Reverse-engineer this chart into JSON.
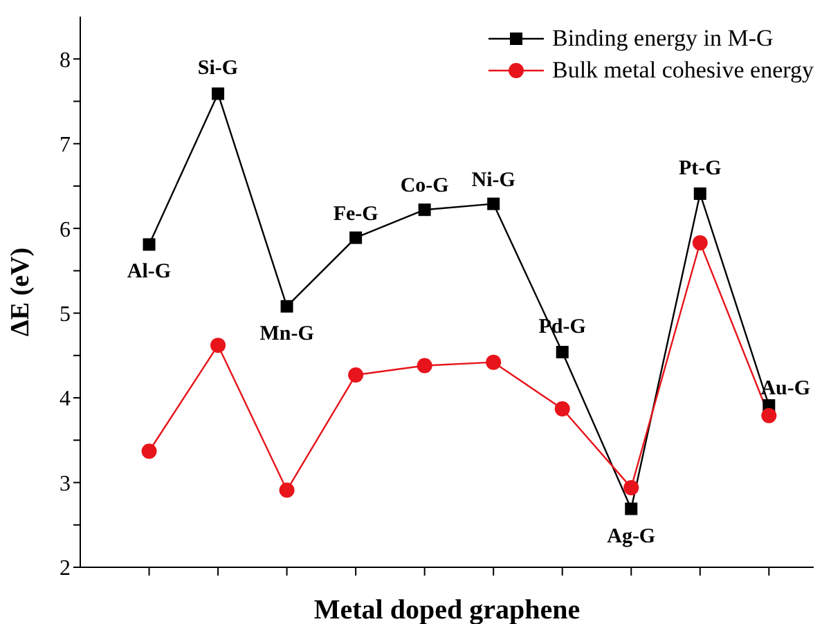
{
  "chart_data": {
    "type": "line",
    "xlabel": "Metal doped graphene",
    "ylabel": "ΔE (eV)",
    "categories": [
      null,
      null,
      null,
      null,
      null,
      null,
      null,
      null,
      null,
      null
    ],
    "series": [
      {
        "name": "Binding energy in M-G",
        "color": "#000000",
        "marker": "square",
        "values": [
          5.81,
          7.59,
          5.08,
          5.89,
          6.22,
          6.29,
          4.54,
          2.69,
          6.41,
          3.91
        ]
      },
      {
        "name": "Bulk metal cohesive energy",
        "color": "#e8141b",
        "marker": "circle",
        "values": [
          3.37,
          4.62,
          2.91,
          4.27,
          4.38,
          4.42,
          3.87,
          2.94,
          5.83,
          3.79
        ]
      }
    ],
    "annotations": [
      "Al-G",
      "Si-G",
      "Mn-G",
      "Fe-G",
      "Co-G",
      "Ni-G",
      "Pd-G",
      "Ag-G",
      "Pt-G",
      "Au-G"
    ],
    "ylim": [
      2,
      8.5
    ],
    "yticks": [
      2,
      {
        "value": 2.5,
        "label": null
      },
      3,
      {
        "value": 3.5,
        "label": null
      },
      4,
      {
        "value": 4.5,
        "label": null
      },
      5,
      {
        "value": 5.5,
        "label": null
      },
      6,
      {
        "value": 6.5,
        "label": null
      },
      7,
      {
        "value": 7.5,
        "label": null
      },
      8
    ],
    "legend": "top right"
  }
}
